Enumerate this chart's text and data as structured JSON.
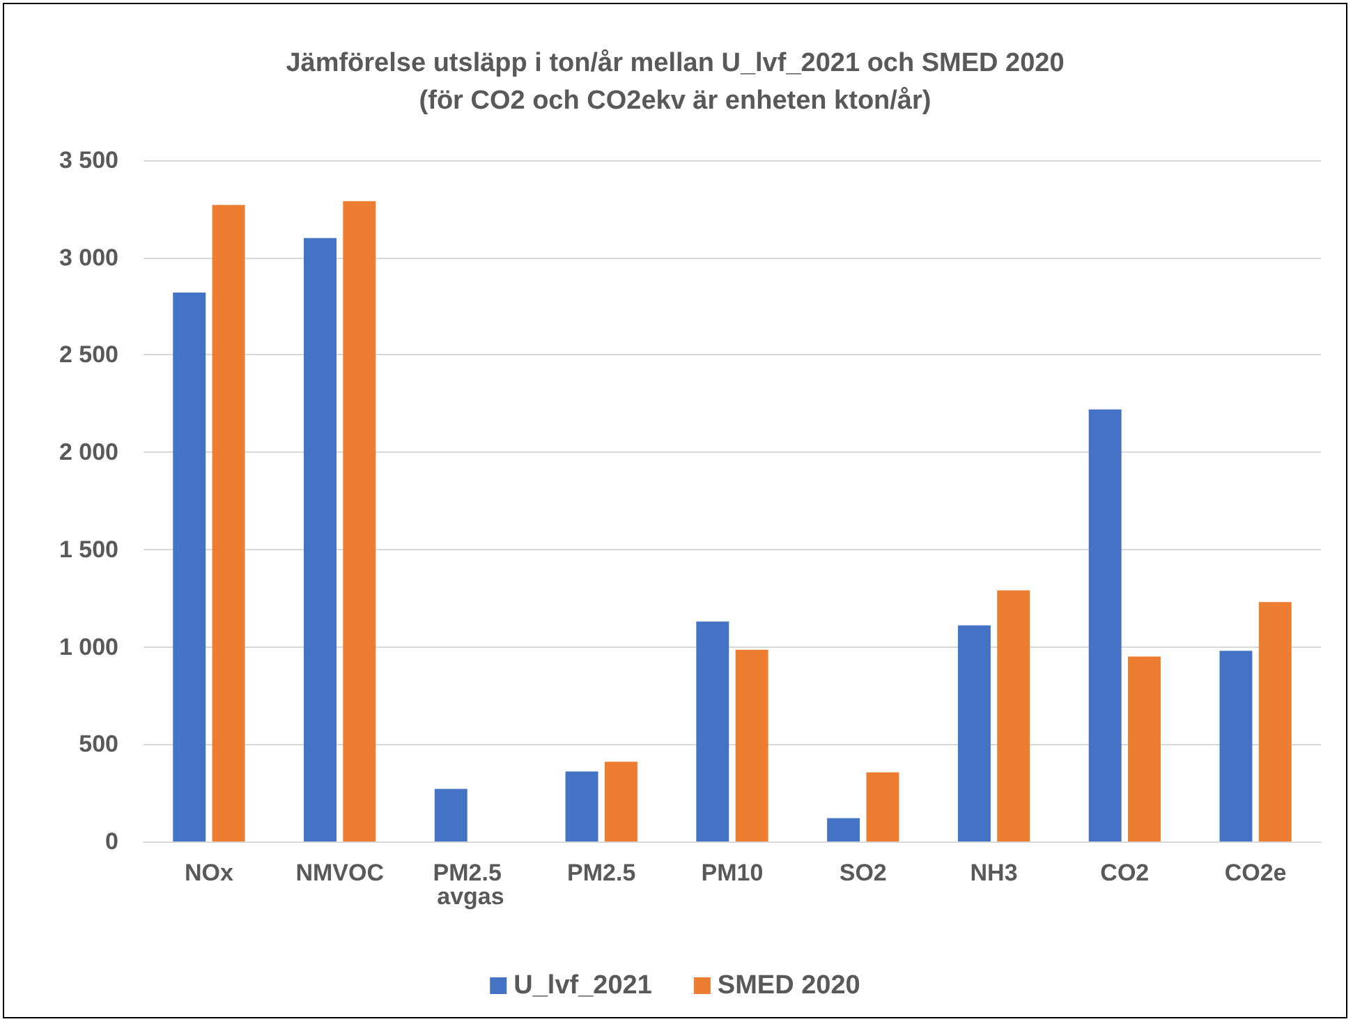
{
  "chart_data": {
    "type": "bar",
    "title": "Jämförelse utsläpp i ton/år mellan U_lvf_2021 och SMED 2020",
    "subtitle": "(för CO2 och CO2ekv är enheten kton/år)",
    "categories": [
      "NOx",
      "NMVOC",
      "PM2.5 avgas",
      "PM2.5",
      "PM10",
      "SO2",
      "NH3",
      "CO2",
      "CO2e"
    ],
    "series": [
      {
        "name": "U_lvf_2021",
        "color": "#4472c4",
        "values": [
          2820,
          3100,
          270,
          360,
          1130,
          120,
          1110,
          2220,
          980
        ]
      },
      {
        "name": "SMED 2020",
        "color": "#ed7d31",
        "values": [
          3270,
          3290,
          null,
          410,
          985,
          355,
          1290,
          950,
          1230
        ]
      }
    ],
    "ylim": [
      0,
      3500
    ],
    "yticks": [
      {
        "value": 0,
        "label": "0"
      },
      {
        "value": 500,
        "label": "500"
      },
      {
        "value": 1000,
        "label": "1 000"
      },
      {
        "value": 1500,
        "label": "1 500"
      },
      {
        "value": 2000,
        "label": "2 000"
      },
      {
        "value": 2500,
        "label": "2 500"
      },
      {
        "value": 3000,
        "label": "3 000"
      },
      {
        "value": 3500,
        "label": "3 500"
      }
    ],
    "grid": "y",
    "legend": "bottom"
  }
}
